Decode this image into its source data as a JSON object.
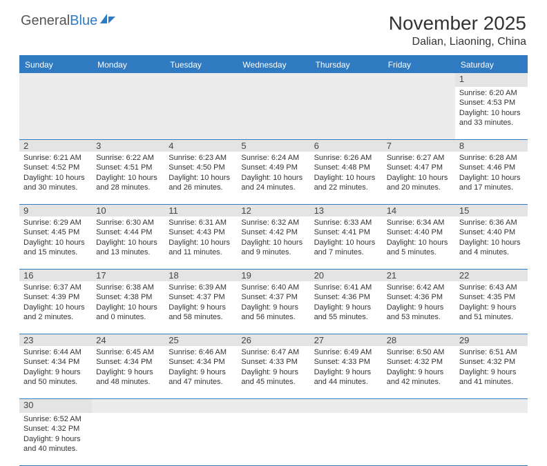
{
  "logo": {
    "general": "General",
    "blue": "Blue"
  },
  "title": "November 2025",
  "location": "Dalian, Liaoning, China",
  "colors": {
    "header_bg": "#2f7ac0",
    "header_text": "#ffffff",
    "daynum_bg": "#e4e4e4",
    "border": "#2f7ac0",
    "logo_blue": "#2f7ac0"
  },
  "day_headers": [
    "Sunday",
    "Monday",
    "Tuesday",
    "Wednesday",
    "Thursday",
    "Friday",
    "Saturday"
  ],
  "weeks": [
    [
      null,
      null,
      null,
      null,
      null,
      null,
      {
        "n": "1",
        "sr": "Sunrise: 6:20 AM",
        "ss": "Sunset: 4:53 PM",
        "dl": "Daylight: 10 hours and 33 minutes."
      }
    ],
    [
      {
        "n": "2",
        "sr": "Sunrise: 6:21 AM",
        "ss": "Sunset: 4:52 PM",
        "dl": "Daylight: 10 hours and 30 minutes."
      },
      {
        "n": "3",
        "sr": "Sunrise: 6:22 AM",
        "ss": "Sunset: 4:51 PM",
        "dl": "Daylight: 10 hours and 28 minutes."
      },
      {
        "n": "4",
        "sr": "Sunrise: 6:23 AM",
        "ss": "Sunset: 4:50 PM",
        "dl": "Daylight: 10 hours and 26 minutes."
      },
      {
        "n": "5",
        "sr": "Sunrise: 6:24 AM",
        "ss": "Sunset: 4:49 PM",
        "dl": "Daylight: 10 hours and 24 minutes."
      },
      {
        "n": "6",
        "sr": "Sunrise: 6:26 AM",
        "ss": "Sunset: 4:48 PM",
        "dl": "Daylight: 10 hours and 22 minutes."
      },
      {
        "n": "7",
        "sr": "Sunrise: 6:27 AM",
        "ss": "Sunset: 4:47 PM",
        "dl": "Daylight: 10 hours and 20 minutes."
      },
      {
        "n": "8",
        "sr": "Sunrise: 6:28 AM",
        "ss": "Sunset: 4:46 PM",
        "dl": "Daylight: 10 hours and 17 minutes."
      }
    ],
    [
      {
        "n": "9",
        "sr": "Sunrise: 6:29 AM",
        "ss": "Sunset: 4:45 PM",
        "dl": "Daylight: 10 hours and 15 minutes."
      },
      {
        "n": "10",
        "sr": "Sunrise: 6:30 AM",
        "ss": "Sunset: 4:44 PM",
        "dl": "Daylight: 10 hours and 13 minutes."
      },
      {
        "n": "11",
        "sr": "Sunrise: 6:31 AM",
        "ss": "Sunset: 4:43 PM",
        "dl": "Daylight: 10 hours and 11 minutes."
      },
      {
        "n": "12",
        "sr": "Sunrise: 6:32 AM",
        "ss": "Sunset: 4:42 PM",
        "dl": "Daylight: 10 hours and 9 minutes."
      },
      {
        "n": "13",
        "sr": "Sunrise: 6:33 AM",
        "ss": "Sunset: 4:41 PM",
        "dl": "Daylight: 10 hours and 7 minutes."
      },
      {
        "n": "14",
        "sr": "Sunrise: 6:34 AM",
        "ss": "Sunset: 4:40 PM",
        "dl": "Daylight: 10 hours and 5 minutes."
      },
      {
        "n": "15",
        "sr": "Sunrise: 6:36 AM",
        "ss": "Sunset: 4:40 PM",
        "dl": "Daylight: 10 hours and 4 minutes."
      }
    ],
    [
      {
        "n": "16",
        "sr": "Sunrise: 6:37 AM",
        "ss": "Sunset: 4:39 PM",
        "dl": "Daylight: 10 hours and 2 minutes."
      },
      {
        "n": "17",
        "sr": "Sunrise: 6:38 AM",
        "ss": "Sunset: 4:38 PM",
        "dl": "Daylight: 10 hours and 0 minutes."
      },
      {
        "n": "18",
        "sr": "Sunrise: 6:39 AM",
        "ss": "Sunset: 4:37 PM",
        "dl": "Daylight: 9 hours and 58 minutes."
      },
      {
        "n": "19",
        "sr": "Sunrise: 6:40 AM",
        "ss": "Sunset: 4:37 PM",
        "dl": "Daylight: 9 hours and 56 minutes."
      },
      {
        "n": "20",
        "sr": "Sunrise: 6:41 AM",
        "ss": "Sunset: 4:36 PM",
        "dl": "Daylight: 9 hours and 55 minutes."
      },
      {
        "n": "21",
        "sr": "Sunrise: 6:42 AM",
        "ss": "Sunset: 4:36 PM",
        "dl": "Daylight: 9 hours and 53 minutes."
      },
      {
        "n": "22",
        "sr": "Sunrise: 6:43 AM",
        "ss": "Sunset: 4:35 PM",
        "dl": "Daylight: 9 hours and 51 minutes."
      }
    ],
    [
      {
        "n": "23",
        "sr": "Sunrise: 6:44 AM",
        "ss": "Sunset: 4:34 PM",
        "dl": "Daylight: 9 hours and 50 minutes."
      },
      {
        "n": "24",
        "sr": "Sunrise: 6:45 AM",
        "ss": "Sunset: 4:34 PM",
        "dl": "Daylight: 9 hours and 48 minutes."
      },
      {
        "n": "25",
        "sr": "Sunrise: 6:46 AM",
        "ss": "Sunset: 4:34 PM",
        "dl": "Daylight: 9 hours and 47 minutes."
      },
      {
        "n": "26",
        "sr": "Sunrise: 6:47 AM",
        "ss": "Sunset: 4:33 PM",
        "dl": "Daylight: 9 hours and 45 minutes."
      },
      {
        "n": "27",
        "sr": "Sunrise: 6:49 AM",
        "ss": "Sunset: 4:33 PM",
        "dl": "Daylight: 9 hours and 44 minutes."
      },
      {
        "n": "28",
        "sr": "Sunrise: 6:50 AM",
        "ss": "Sunset: 4:32 PM",
        "dl": "Daylight: 9 hours and 42 minutes."
      },
      {
        "n": "29",
        "sr": "Sunrise: 6:51 AM",
        "ss": "Sunset: 4:32 PM",
        "dl": "Daylight: 9 hours and 41 minutes."
      }
    ],
    [
      {
        "n": "30",
        "sr": "Sunrise: 6:52 AM",
        "ss": "Sunset: 4:32 PM",
        "dl": "Daylight: 9 hours and 40 minutes."
      },
      null,
      null,
      null,
      null,
      null,
      null
    ]
  ]
}
